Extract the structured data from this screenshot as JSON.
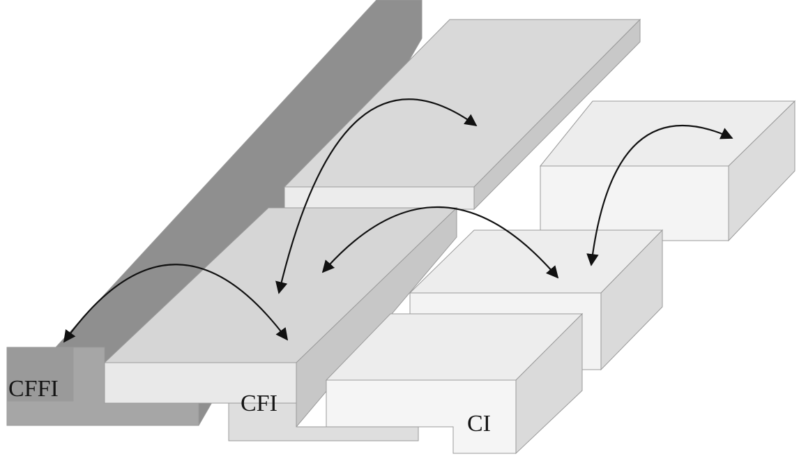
{
  "diagram": {
    "labels": {
      "cffi": "CFFI",
      "cfi": "CFI",
      "ci": "CI"
    },
    "colors": {
      "cffi_top": "#8f8f8f",
      "cffi_side": "#a2a2a2",
      "cfi_top": "#d6d6d6",
      "cfi_front": "#e9e9e9",
      "cfi_side": "#c7c7c7",
      "ci_top": "#ededed",
      "ci_front": "#f3f3f3",
      "ci_side": "#dadada",
      "arrow": "#111111"
    }
  }
}
